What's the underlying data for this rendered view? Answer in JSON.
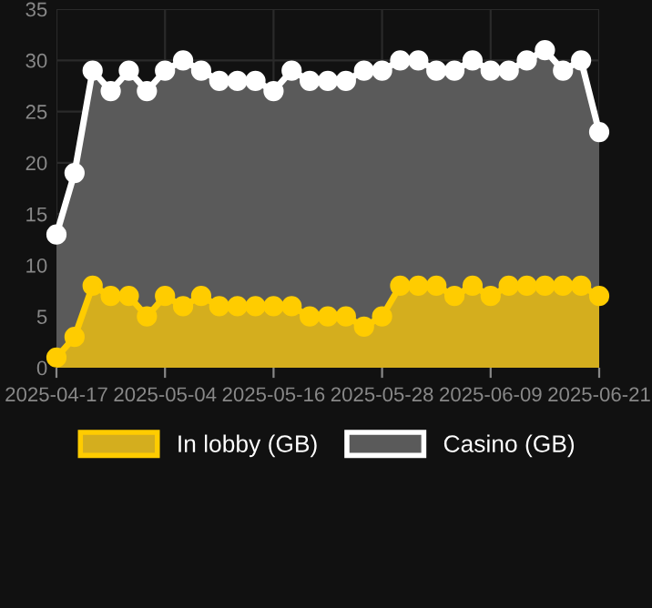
{
  "chart_data": {
    "type": "area",
    "categories": [
      "2025-04-17",
      null,
      null,
      null,
      null,
      null,
      "2025-05-04",
      null,
      null,
      null,
      null,
      null,
      "2025-05-16",
      null,
      null,
      null,
      null,
      null,
      "2025-05-28",
      null,
      null,
      null,
      null,
      null,
      "2025-06-09",
      null,
      null,
      null,
      null,
      null,
      "2025-06-21"
    ],
    "series": [
      {
        "name": "In lobby (GB)",
        "color": "#ffcc00",
        "values": [
          1,
          3,
          8,
          7,
          7,
          5,
          7,
          6,
          7,
          6,
          6,
          6,
          6,
          6,
          5,
          5,
          5,
          4,
          5,
          8,
          8,
          8,
          7,
          8,
          7,
          8,
          8,
          8,
          8,
          8,
          7
        ]
      },
      {
        "name": "Casino (GB)",
        "color": "#ffffff",
        "values": [
          13,
          19,
          29,
          27,
          29,
          27,
          29,
          30,
          29,
          28,
          28,
          28,
          27,
          29,
          28,
          28,
          28,
          29,
          29,
          30,
          30,
          29,
          29,
          30,
          29,
          29,
          30,
          31,
          29,
          30,
          23
        ]
      }
    ],
    "ylim": [
      0,
      35
    ],
    "yticks": [
      0,
      5,
      10,
      15,
      20,
      25,
      30,
      35
    ],
    "grid": true,
    "legend": "bottom",
    "marker": "circle",
    "line_style": "solid"
  }
}
